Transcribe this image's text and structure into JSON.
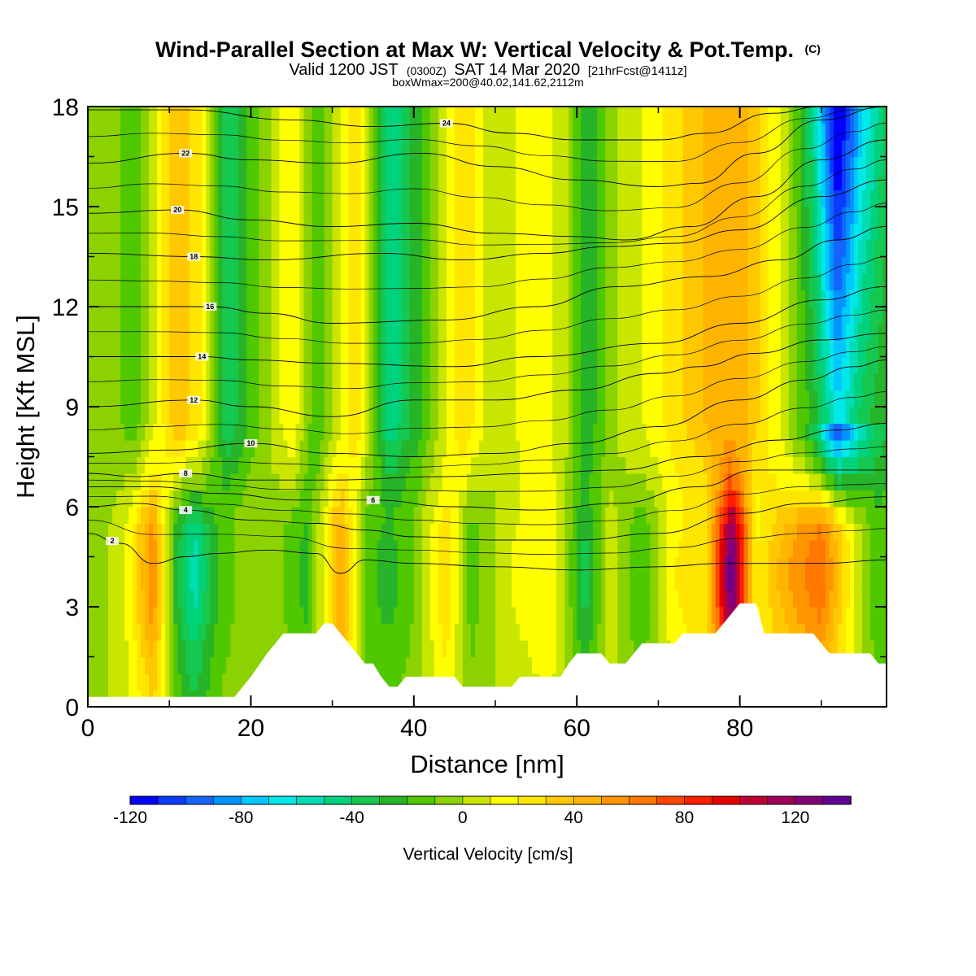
{
  "chart_data": {
    "type": "heatmap",
    "title": "Wind-Parallel Section at Max W: Vertical Velocity & Pot.Temp.",
    "title_mark": "(C)",
    "subtitle_parts": {
      "valid": "Valid 1200 JST",
      "utc": "(0300Z)",
      "date": "SAT 14 Mar 2020",
      "fcst": "[21hrFcst@1411z]"
    },
    "subtitle2": "boxWmax=200@40.02,141.62,2112m",
    "xlabel": "Distance [nm]",
    "ylabel": "Height [Kft MSL]",
    "xlim": [
      0,
      98
    ],
    "ylim": [
      0,
      18
    ],
    "x_ticks": [
      0,
      20,
      40,
      60,
      80
    ],
    "y_ticks": [
      0,
      3,
      6,
      9,
      12,
      15,
      18
    ],
    "colorbar": {
      "title": "Vertical Velocity [cm/s]",
      "min": -120,
      "max": 150,
      "step": 10,
      "tick_labels": [
        -120,
        -80,
        -40,
        0,
        40,
        80,
        120
      ],
      "colors": [
        "#0000ff",
        "#0a3cff",
        "#1664ff",
        "#0094ff",
        "#00c8ff",
        "#00e8e8",
        "#00dcb4",
        "#00d27c",
        "#14c850",
        "#28b428",
        "#50c800",
        "#8cd200",
        "#c8e600",
        "#ffff00",
        "#ffe600",
        "#ffc800",
        "#ffb400",
        "#ff9600",
        "#ff7800",
        "#ff4600",
        "#ff1e00",
        "#e60000",
        "#be0032",
        "#a0005a",
        "#820078",
        "#640096"
      ]
    },
    "velocity_columns": [
      {
        "x": 2,
        "w": -5
      },
      {
        "x": 5,
        "w": 15
      },
      {
        "x": 8,
        "w": 60
      },
      {
        "x": 11,
        "w": -30
      },
      {
        "x": 13,
        "w": -55
      },
      {
        "x": 16,
        "w": -20
      },
      {
        "x": 20,
        "w": 0
      },
      {
        "x": 24,
        "w": -10
      },
      {
        "x": 27,
        "w": -25
      },
      {
        "x": 31,
        "w": 55
      },
      {
        "x": 34,
        "w": -15
      },
      {
        "x": 37,
        "w": -25
      },
      {
        "x": 40,
        "w": -10
      },
      {
        "x": 44,
        "w": 30
      },
      {
        "x": 47,
        "w": -15
      },
      {
        "x": 52,
        "w": 10
      },
      {
        "x": 57,
        "w": 20
      },
      {
        "x": 61,
        "w": -35
      },
      {
        "x": 64,
        "w": 5
      },
      {
        "x": 68,
        "w": -20
      },
      {
        "x": 72,
        "w": 20
      },
      {
        "x": 76,
        "w": 30
      },
      {
        "x": 79,
        "w": 140
      },
      {
        "x": 82,
        "w": 20
      },
      {
        "x": 86,
        "w": 50
      },
      {
        "x": 90,
        "w": 70
      },
      {
        "x": 94,
        "w": 10
      },
      {
        "x": 97,
        "w": -20
      }
    ],
    "upper_columns": [
      {
        "x": 2,
        "w": -5
      },
      {
        "x": 6,
        "w": -15
      },
      {
        "x": 11,
        "w": 40
      },
      {
        "x": 14,
        "w": 20
      },
      {
        "x": 17,
        "w": -40
      },
      {
        "x": 21,
        "w": -10
      },
      {
        "x": 25,
        "w": 20
      },
      {
        "x": 28,
        "w": -20
      },
      {
        "x": 33,
        "w": 30
      },
      {
        "x": 37,
        "w": -50
      },
      {
        "x": 41,
        "w": -20
      },
      {
        "x": 46,
        "w": 30
      },
      {
        "x": 50,
        "w": 0
      },
      {
        "x": 55,
        "w": 20
      },
      {
        "x": 59,
        "w": 0
      },
      {
        "x": 61,
        "w": -30
      },
      {
        "x": 65,
        "w": 0
      },
      {
        "x": 68,
        "w": 10
      },
      {
        "x": 73,
        "w": 30
      },
      {
        "x": 78,
        "w": 50
      },
      {
        "x": 81,
        "w": 40
      },
      {
        "x": 86,
        "w": 0
      },
      {
        "x": 89,
        "w": -40
      },
      {
        "x": 92,
        "w": -110
      },
      {
        "x": 95,
        "w": -60
      },
      {
        "x": 98,
        "w": -30
      }
    ],
    "terrain_kft": [
      {
        "x": 0,
        "y": 0.3
      },
      {
        "x": 18,
        "y": 0.3
      },
      {
        "x": 20,
        "y": 0.9
      },
      {
        "x": 22,
        "y": 1.6
      },
      {
        "x": 23,
        "y": 1.9
      },
      {
        "x": 24,
        "y": 2.2
      },
      {
        "x": 28,
        "y": 2.2
      },
      {
        "x": 29,
        "y": 2.5
      },
      {
        "x": 30,
        "y": 2.5
      },
      {
        "x": 31,
        "y": 2.2
      },
      {
        "x": 32,
        "y": 1.9
      },
      {
        "x": 33,
        "y": 1.6
      },
      {
        "x": 34,
        "y": 1.3
      },
      {
        "x": 35,
        "y": 1.3
      },
      {
        "x": 36,
        "y": 0.9
      },
      {
        "x": 37,
        "y": 0.6
      },
      {
        "x": 38,
        "y": 0.6
      },
      {
        "x": 39,
        "y": 0.9
      },
      {
        "x": 45,
        "y": 0.9
      },
      {
        "x": 46,
        "y": 0.6
      },
      {
        "x": 52,
        "y": 0.6
      },
      {
        "x": 53,
        "y": 0.9
      },
      {
        "x": 58,
        "y": 0.9
      },
      {
        "x": 59,
        "y": 1.3
      },
      {
        "x": 60,
        "y": 1.6
      },
      {
        "x": 63,
        "y": 1.6
      },
      {
        "x": 64,
        "y": 1.3
      },
      {
        "x": 66,
        "y": 1.3
      },
      {
        "x": 67,
        "y": 1.6
      },
      {
        "x": 68,
        "y": 1.9
      },
      {
        "x": 72,
        "y": 1.9
      },
      {
        "x": 73,
        "y": 2.2
      },
      {
        "x": 77,
        "y": 2.2
      },
      {
        "x": 78,
        "y": 2.5
      },
      {
        "x": 79,
        "y": 2.8
      },
      {
        "x": 80,
        "y": 3.1
      },
      {
        "x": 82,
        "y": 3.1
      },
      {
        "x": 83,
        "y": 2.2
      },
      {
        "x": 89,
        "y": 2.2
      },
      {
        "x": 90,
        "y": 1.9
      },
      {
        "x": 91,
        "y": 1.6
      },
      {
        "x": 96,
        "y": 1.6
      },
      {
        "x": 97,
        "y": 1.3
      },
      {
        "x": 98,
        "y": 1.3
      }
    ],
    "theta_contours": [
      {
        "value": 2,
        "label": "2",
        "label_x": 3,
        "pts": [
          [
            0,
            5.2
          ],
          [
            4,
            4.9
          ],
          [
            8,
            4.3
          ],
          [
            12,
            4.5
          ],
          [
            16,
            4.6
          ],
          [
            22,
            4.7
          ],
          [
            28,
            4.6
          ],
          [
            31,
            4.0
          ],
          [
            34,
            4.4
          ],
          [
            40,
            4.3
          ],
          [
            50,
            4.2
          ],
          [
            60,
            4.1
          ],
          [
            70,
            4.2
          ],
          [
            78,
            4.3
          ],
          [
            90,
            4.3
          ],
          [
            98,
            4.4
          ]
        ]
      },
      {
        "value": 4,
        "label": "4",
        "label_x": 12,
        "pts": [
          [
            0,
            6.0
          ],
          [
            6,
            6.1
          ],
          [
            12,
            5.9
          ],
          [
            20,
            5.6
          ],
          [
            28,
            5.5
          ],
          [
            34,
            5.3
          ],
          [
            40,
            5.1
          ],
          [
            50,
            5.0
          ],
          [
            60,
            5.0
          ],
          [
            70,
            5.2
          ],
          [
            80,
            5.8
          ],
          [
            88,
            6.1
          ],
          [
            98,
            6.3
          ]
        ]
      },
      {
        "value": 6,
        "label": "6",
        "label_x": 35,
        "pts": [
          [
            0,
            6.6
          ],
          [
            8,
            6.6
          ],
          [
            16,
            6.4
          ],
          [
            26,
            6.2
          ],
          [
            35,
            6.2
          ],
          [
            45,
            6.0
          ],
          [
            55,
            5.9
          ],
          [
            65,
            6.1
          ],
          [
            75,
            6.6
          ],
          [
            82,
            7.1
          ],
          [
            90,
            7.1
          ],
          [
            98,
            7.1
          ]
        ]
      },
      {
        "value": 8,
        "label": "8",
        "label_x": 12,
        "pts": [
          [
            0,
            7.0
          ],
          [
            6,
            6.9
          ],
          [
            12,
            7.0
          ],
          [
            20,
            6.8
          ],
          [
            30,
            6.8
          ],
          [
            43,
            6.9
          ],
          [
            55,
            7.0
          ],
          [
            65,
            7.1
          ],
          [
            75,
            7.5
          ],
          [
            85,
            8.0
          ],
          [
            92,
            8.3
          ],
          [
            98,
            8.5
          ]
        ]
      },
      {
        "value": 10,
        "label": "10",
        "label_x": 20,
        "pts": [
          [
            0,
            7.6
          ],
          [
            10,
            7.7
          ],
          [
            20,
            7.9
          ],
          [
            30,
            7.6
          ],
          [
            40,
            7.5
          ],
          [
            50,
            7.6
          ],
          [
            60,
            7.9
          ],
          [
            70,
            8.4
          ],
          [
            80,
            9.2
          ],
          [
            88,
            9.8
          ],
          [
            94,
            10.2
          ],
          [
            98,
            10.4
          ]
        ]
      },
      {
        "value": 12,
        "label": "12",
        "label_x": 13,
        "pts": [
          [
            0,
            9.0
          ],
          [
            13,
            9.2
          ],
          [
            20,
            9.0
          ],
          [
            30,
            8.7
          ],
          [
            40,
            9.2
          ],
          [
            50,
            9.2
          ],
          [
            60,
            9.5
          ],
          [
            70,
            10.0
          ],
          [
            75,
            10.2
          ],
          [
            82,
            10.6
          ],
          [
            90,
            11.0
          ],
          [
            98,
            11.2
          ]
        ]
      },
      {
        "value": 14,
        "label": "14",
        "label_x": 14,
        "pts": [
          [
            0,
            10.5
          ],
          [
            14,
            10.5
          ],
          [
            20,
            10.4
          ],
          [
            30,
            10.3
          ],
          [
            45,
            10.2
          ],
          [
            55,
            10.5
          ],
          [
            70,
            10.9
          ],
          [
            80,
            11.5
          ],
          [
            90,
            12.2
          ],
          [
            98,
            12.6
          ]
        ]
      },
      {
        "value": 16,
        "label": "16",
        "label_x": 15,
        "pts": [
          [
            0,
            12.0
          ],
          [
            15,
            12.0
          ],
          [
            22,
            11.8
          ],
          [
            30,
            11.5
          ],
          [
            44,
            11.6
          ],
          [
            55,
            12.0
          ],
          [
            65,
            12.6
          ],
          [
            76,
            12.9
          ],
          [
            85,
            13.4
          ],
          [
            92,
            14.0
          ],
          [
            98,
            14.4
          ]
        ]
      },
      {
        "value": 18,
        "label": "18",
        "label_x": 13,
        "pts": [
          [
            0,
            13.6
          ],
          [
            13,
            13.5
          ],
          [
            22,
            13.4
          ],
          [
            36,
            13.6
          ],
          [
            46,
            13.4
          ],
          [
            56,
            13.6
          ],
          [
            64,
            13.8
          ],
          [
            72,
            13.9
          ],
          [
            80,
            14.3
          ],
          [
            90,
            15.3
          ],
          [
            98,
            15.8
          ]
        ]
      },
      {
        "value": 20,
        "label": "20",
        "label_x": 11,
        "pts": [
          [
            0,
            14.8
          ],
          [
            11,
            14.9
          ],
          [
            20,
            14.6
          ],
          [
            30,
            14.4
          ],
          [
            40,
            14.5
          ],
          [
            50,
            14.2
          ],
          [
            60,
            14.1
          ],
          [
            66,
            14.0
          ],
          [
            74,
            14.4
          ],
          [
            82,
            15.3
          ],
          [
            90,
            16.4
          ],
          [
            98,
            17.0
          ]
        ]
      },
      {
        "value": 22,
        "label": "22",
        "label_x": 12,
        "pts": [
          [
            0,
            16.3
          ],
          [
            12,
            16.6
          ],
          [
            20,
            16.4
          ],
          [
            30,
            16.3
          ],
          [
            41,
            16.6
          ],
          [
            50,
            16.2
          ],
          [
            60,
            15.8
          ],
          [
            70,
            15.6
          ],
          [
            75,
            15.7
          ],
          [
            82,
            16.6
          ],
          [
            90,
            17.6
          ],
          [
            98,
            18.0
          ]
        ]
      },
      {
        "value": 24,
        "label": "24",
        "label_x": 44,
        "pts": [
          [
            0,
            17.9
          ],
          [
            12,
            17.9
          ],
          [
            25,
            17.6
          ],
          [
            35,
            17.4
          ],
          [
            44,
            17.5
          ],
          [
            52,
            17.2
          ],
          [
            60,
            17.0
          ],
          [
            70,
            17.0
          ],
          [
            76,
            17.2
          ],
          [
            84,
            17.8
          ],
          [
            90,
            18.0
          ],
          [
            98,
            18.0
          ]
        ]
      }
    ]
  }
}
